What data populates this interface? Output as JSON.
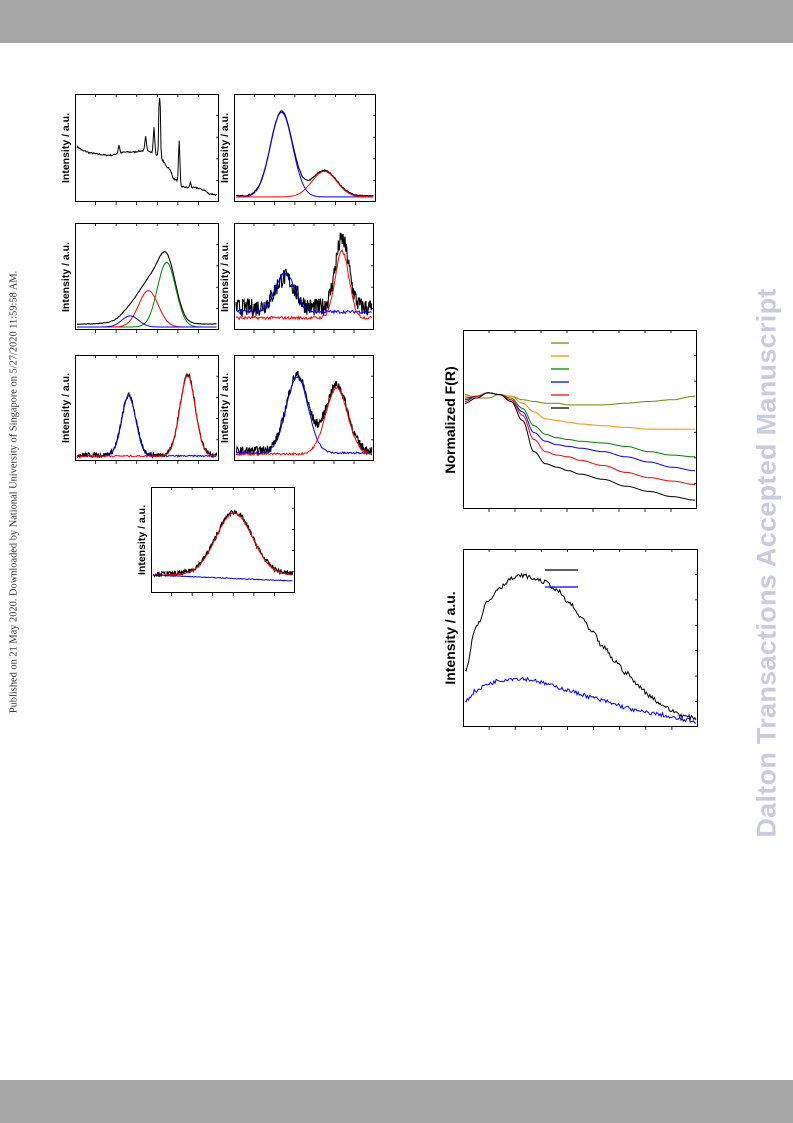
{
  "side_note": "Published on 21 May 2020. Downloaded by National University of Singapore on 5/27/2020 11:59:58 AM.",
  "watermark": "Dalton Transactions Accepted Manuscript",
  "colors": {
    "band": "#a6a6a6",
    "black": "#000000",
    "blue": "#0000ff",
    "red": "#ff0000",
    "green": "#008000",
    "orange": "#ff8c00",
    "olive": "#808000",
    "watermark": "#c9cbdf"
  },
  "panels": {
    "a": {
      "ylabel": "Intensity / a.u."
    },
    "b": {
      "ylabel": "Intensity / a.u."
    },
    "c": {
      "ylabel": "Intensity / a.u."
    },
    "d": {
      "ylabel": "Intensity / a.u."
    },
    "e": {
      "ylabel": "Intensity / a.u."
    },
    "f": {
      "ylabel": "Intensity / a.u."
    },
    "g": {
      "ylabel": "Intensity / a.u."
    },
    "uvvis": {
      "ylabel": "Normalized F(R)",
      "legend_series": [
        "olive",
        "orange",
        "green",
        "blue",
        "red",
        "black"
      ]
    },
    "pl": {
      "ylabel": "Intensity / a.u.",
      "legend_series": [
        "black",
        "blue"
      ]
    }
  },
  "chart_data": [
    {
      "id": "a",
      "type": "line",
      "xlabel": "",
      "ylabel": "Intensity / a.u.",
      "x": [
        0,
        5,
        10,
        15,
        20,
        25,
        30,
        35,
        40,
        45,
        50,
        55,
        60,
        65,
        70,
        75,
        80,
        85,
        90,
        95,
        100
      ],
      "series": [
        {
          "color": "#000000",
          "values": [
            0.52,
            0.48,
            0.46,
            0.45,
            0.44,
            0.44,
            0.46,
            0.47,
            0.47,
            0.48,
            0.49,
            0.46,
            0.4,
            0.32,
            0.2,
            0.13,
            0.12,
            0.12,
            0.1,
            0.06,
            0.05
          ]
        }
      ],
      "peaks": [
        {
          "x": 30,
          "h": 0.08
        },
        {
          "x": 49,
          "h": 0.13
        },
        {
          "x": 55,
          "h": 0.25
        },
        {
          "x": 59,
          "h": 0.83
        },
        {
          "x": 73,
          "h": 0.42
        },
        {
          "x": 81,
          "h": 0.05
        }
      ],
      "noise": 0.008,
      "ylim": [
        0,
        1
      ]
    },
    {
      "id": "b",
      "type": "line",
      "xlabel": "",
      "ylabel": "Intensity / a.u.",
      "peaks_model": true,
      "series": [
        {
          "color": "#000000",
          "gauss": [
            [
              33,
              8,
              0.83
            ],
            [
              64,
              9,
              0.25
            ]
          ],
          "base": 0.04,
          "noise": 0.005
        },
        {
          "color": "#0000ff",
          "gauss": [
            [
              33,
              8,
              0.83
            ]
          ],
          "base": 0.03,
          "noise": 0
        },
        {
          "color": "#ff0000",
          "gauss": [
            [
              64,
              9,
              0.25
            ]
          ],
          "base": 0.03,
          "noise": 0
        }
      ],
      "ylim": [
        0,
        1
      ]
    },
    {
      "id": "c",
      "type": "line",
      "xlabel": "",
      "ylabel": "Intensity / a.u.",
      "peaks_model": true,
      "series": [
        {
          "color": "#000000",
          "gauss": [
            [
              64,
              6.5,
              0.62
            ],
            [
              51,
              7,
              0.28
            ],
            [
              38,
              6,
              0.07
            ],
            [
              46,
              12,
              0.1
            ]
          ],
          "base": 0.04,
          "noise": 0.003
        },
        {
          "color": "#008000",
          "gauss": [
            [
              64,
              6.5,
              0.64
            ]
          ],
          "base": 0.01,
          "noise": 0
        },
        {
          "color": "#ff0000",
          "gauss": [
            [
              51,
              7,
              0.36
            ]
          ],
          "base": 0.01,
          "noise": 0
        },
        {
          "color": "#0000ff",
          "gauss": [
            [
              38,
              6,
              0.11
            ]
          ],
          "base": 0.01,
          "noise": 0
        }
      ],
      "ylim": [
        0,
        1
      ]
    },
    {
      "id": "d",
      "type": "line",
      "xlabel": "",
      "ylabel": "Intensity / a.u.",
      "peaks_model": true,
      "series": [
        {
          "color": "#000000",
          "gauss": [
            [
              36,
              7,
              0.3
            ],
            [
              78,
              5,
              0.68
            ]
          ],
          "base": 0.2,
          "noise": 0.09
        },
        {
          "color": "#0000ff",
          "gauss": [
            [
              36,
              7,
              0.38
            ]
          ],
          "base": 0.16,
          "noise": 0.015
        },
        {
          "color": "#ff0000",
          "gauss": [
            [
              78,
              5,
              0.66
            ]
          ],
          "base": 0.1,
          "noise": 0.015
        }
      ],
      "ylim": [
        0,
        1
      ]
    },
    {
      "id": "e",
      "type": "line",
      "xlabel": "",
      "ylabel": "Intensity / a.u.",
      "peaks_model": true,
      "series": [
        {
          "color": "#000000",
          "gauss": [
            [
              37,
              5,
              0.6
            ],
            [
              79,
              5.5,
              0.8
            ]
          ],
          "base": 0.04,
          "noise": 0.025
        },
        {
          "color": "#0000ff",
          "gauss": [
            [
              37,
              5,
              0.6
            ]
          ],
          "base": 0.03,
          "noise": 0.008
        },
        {
          "color": "#ff0000",
          "gauss": [
            [
              79,
              5.5,
              0.8
            ]
          ],
          "base": 0.03,
          "noise": 0.008
        }
      ],
      "ylim": [
        0,
        1
      ]
    },
    {
      "id": "f",
      "type": "line",
      "xlabel": "",
      "ylabel": "Intensity / a.u.",
      "peaks_model": true,
      "series": [
        {
          "color": "#000000",
          "gauss": [
            [
              45,
              8,
              0.76
            ],
            [
              74,
              8,
              0.66
            ]
          ],
          "base": 0.08,
          "noise": 0.045
        },
        {
          "color": "#0000ff",
          "gauss": [
            [
              45,
              8,
              0.76
            ]
          ],
          "base": 0.06,
          "noise": 0.01
        },
        {
          "color": "#ff0000",
          "gauss": [
            [
              74,
              8,
              0.66
            ]
          ],
          "base": 0.05,
          "noise": 0.01
        }
      ],
      "ylim": [
        0,
        1
      ]
    },
    {
      "id": "g",
      "type": "line",
      "xlabel": "",
      "ylabel": "Intensity / a.u.",
      "peaks_model": true,
      "series": [
        {
          "color": "#000000",
          "gauss": [
            [
              58,
              13,
              0.62
            ]
          ],
          "base": 0.17,
          "noise": 0.025
        },
        {
          "color": "#ff0000",
          "gauss": [
            [
              58,
              13,
              0.62
            ]
          ],
          "base": 0.16,
          "noise": 0.004
        },
        {
          "color": "#0000ff",
          "gauss": [],
          "base": 0.16,
          "slope": -0.06,
          "noise": 0.004
        }
      ],
      "ylim": [
        0,
        1
      ]
    },
    {
      "id": "uvvis",
      "type": "line",
      "xlabel": "",
      "ylabel": "Normalized F(R)",
      "x": [
        0,
        5,
        10,
        15,
        20,
        25,
        30,
        35,
        40,
        45,
        50,
        60,
        70,
        80,
        90,
        100
      ],
      "series": [
        {
          "color": "#808000",
          "values": [
            0.65,
            0.63,
            0.63,
            0.65,
            0.64,
            0.62,
            0.61,
            0.6,
            0.6,
            0.59,
            0.59,
            0.59,
            0.6,
            0.61,
            0.62,
            0.64
          ]
        },
        {
          "color": "#ff8c00",
          "values": [
            0.64,
            0.64,
            0.66,
            0.65,
            0.64,
            0.6,
            0.55,
            0.51,
            0.5,
            0.49,
            0.48,
            0.47,
            0.46,
            0.45,
            0.45,
            0.45
          ]
        },
        {
          "color": "#008000",
          "values": [
            0.63,
            0.64,
            0.66,
            0.65,
            0.63,
            0.57,
            0.47,
            0.42,
            0.4,
            0.39,
            0.38,
            0.37,
            0.35,
            0.32,
            0.3,
            0.29
          ]
        },
        {
          "color": "#0000ff",
          "values": [
            0.62,
            0.64,
            0.66,
            0.65,
            0.62,
            0.55,
            0.43,
            0.38,
            0.36,
            0.35,
            0.34,
            0.32,
            0.29,
            0.26,
            0.23,
            0.21
          ]
        },
        {
          "color": "#ff0000",
          "values": [
            0.61,
            0.64,
            0.66,
            0.65,
            0.62,
            0.53,
            0.39,
            0.32,
            0.3,
            0.29,
            0.27,
            0.24,
            0.2,
            0.17,
            0.15,
            0.13
          ]
        },
        {
          "color": "#000000",
          "values": [
            0.6,
            0.63,
            0.66,
            0.65,
            0.61,
            0.5,
            0.32,
            0.25,
            0.23,
            0.21,
            0.19,
            0.16,
            0.12,
            0.09,
            0.06,
            0.04
          ]
        }
      ],
      "ylim": [
        0,
        1
      ]
    },
    {
      "id": "pl",
      "type": "line",
      "xlabel": "",
      "ylabel": "Intensity / a.u.",
      "x": [
        0,
        5,
        10,
        15,
        20,
        25,
        30,
        35,
        40,
        45,
        50,
        55,
        60,
        65,
        70,
        75,
        80,
        85,
        90,
        95,
        100
      ],
      "series": [
        {
          "color": "#000000",
          "values": [
            0.32,
            0.58,
            0.72,
            0.8,
            0.85,
            0.87,
            0.85,
            0.83,
            0.78,
            0.71,
            0.63,
            0.54,
            0.45,
            0.37,
            0.3,
            0.23,
            0.17,
            0.12,
            0.08,
            0.05,
            0.04
          ]
        },
        {
          "color": "#0000ff",
          "values": [
            0.14,
            0.2,
            0.24,
            0.26,
            0.27,
            0.27,
            0.26,
            0.24,
            0.22,
            0.2,
            0.18,
            0.16,
            0.14,
            0.12,
            0.1,
            0.08,
            0.07,
            0.06,
            0.04,
            0.03,
            0.02
          ]
        }
      ],
      "ylim": [
        0,
        1
      ]
    }
  ]
}
